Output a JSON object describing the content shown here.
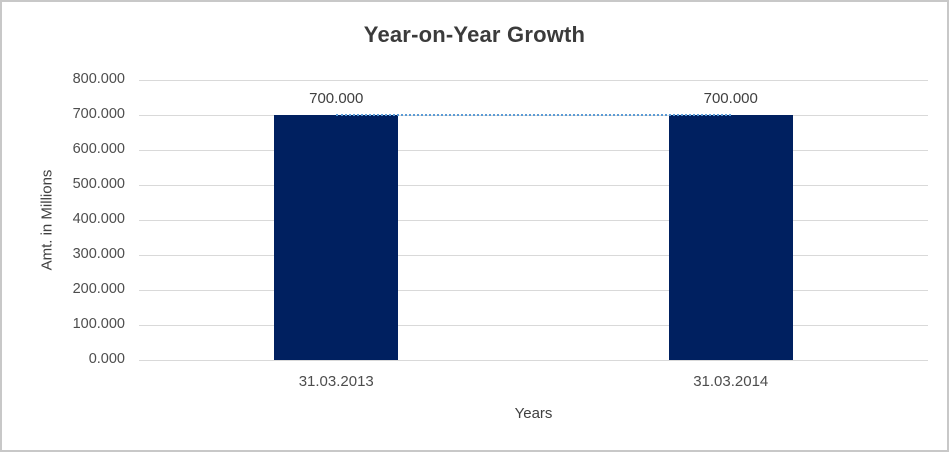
{
  "chart_data": {
    "type": "bar",
    "title": "Year-on-Year Growth",
    "xlabel": "Years",
    "ylabel": "Amt. in Millions",
    "categories": [
      "31.03.2013",
      "31.03.2014"
    ],
    "values": [
      700,
      700
    ],
    "data_labels": [
      "700.000",
      "700.000"
    ],
    "ylim": [
      0,
      800
    ],
    "ytick_step": 100,
    "ytick_labels": [
      "0.000",
      "100.000",
      "200.000",
      "300.000",
      "400.000",
      "500.000",
      "600.000",
      "700.000",
      "800.000"
    ],
    "grid": true,
    "legend": "none",
    "connector_line": {
      "style": "dotted",
      "value": 700,
      "from_category": 0,
      "to_category": 1,
      "color": "#5b9bd5"
    },
    "colors": {
      "bar": "#002060",
      "gridline": "#d9d9d9",
      "connector": "#5b9bd5",
      "title_text": "#3b3b3b",
      "axis_title_text": "#404040",
      "tick_label_text": "#4d4d4d",
      "frame_border": "#c8c8c8",
      "background": "#ffffff"
    }
  }
}
